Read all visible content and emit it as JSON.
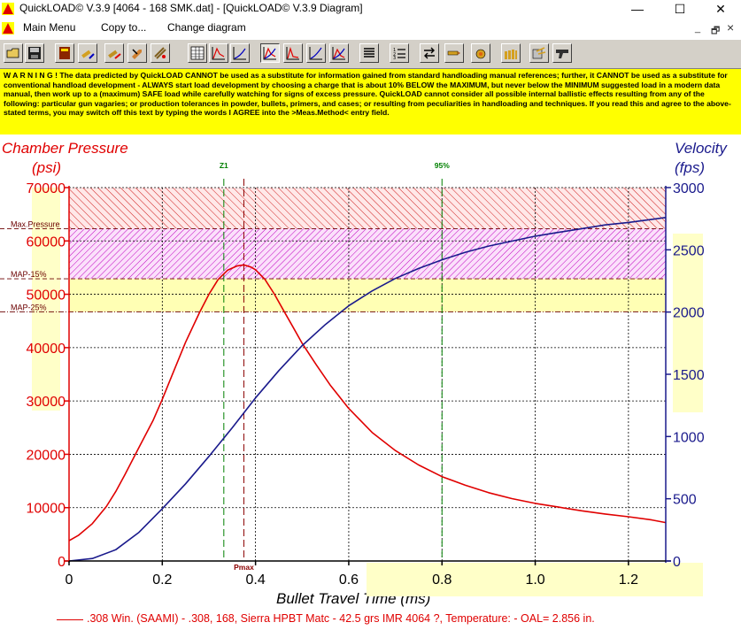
{
  "window": {
    "title": "QuickLOAD© V.3.9   [4064 - 168 SMK.dat] - [QuickLOAD© V.3.9 Diagram]",
    "minimize": "—",
    "maximize": "☐",
    "close": "✕"
  },
  "menu": {
    "items": [
      "Main Menu",
      "Copy to...",
      "Change diagram"
    ],
    "mdi_minimize": "_",
    "mdi_restore": "🗗",
    "mdi_close": "×"
  },
  "toolbar": {
    "icons": [
      "open-folder-icon",
      "save-disk-icon",
      "book-icon",
      "cartridge-edit-icon",
      "powder-edit-icon",
      "bullet-edit-icon",
      "gun-edit-icon",
      "table-icon",
      "pressure-chart-icon",
      "velocity-chart-icon",
      "pressure-time-chart-icon",
      "energy-chart-icon",
      "efficiency-chart-icon",
      "burn-chart-icon",
      "list-icon",
      "numbered-list-icon",
      "load-transfer-icon",
      "cartridge-set-icon",
      "primer-icon",
      "bullets-icon",
      "settings-icon",
      "pistol-icon"
    ],
    "pressed_index": 10
  },
  "warning": {
    "text": "W A R N I N G ! The data predicted by QuickLOAD CANNOT be used as a substitute for information gained from standard handloading manual references; further, it CANNOT be used as a substitute for conventional handload development - ALWAYS start load development by choosing a charge that is about 10% BELOW the MAXIMUM, but never below the MINIMUM suggested load in a modern data manual, then work up to a (maximum) SAFE load while carefully watching for signs of excess pressure. QuickLOAD cannot consider all possible internal ballistic effects resulting from any of the following: particular gun vagaries; or production tolerances in powder, bullets, primers, and cases; or resulting from peculiarities in handloading and techniques. If you read this and agree to the above-stated terms, you may switch off this text by typing the words I AGREE into the >Meas.Method< entry field."
  },
  "chart_data": {
    "type": "line",
    "title": "",
    "xlabel": "Bullet Travel Time (ms)",
    "y_left_label": "Chamber Pressure",
    "y_left_unit": "(psi)",
    "y_right_label": "Velocity",
    "y_right_unit": "(fps)",
    "xlim": [
      0,
      1.28
    ],
    "ylim_left": [
      0,
      70000
    ],
    "ylim_right": [
      0,
      3000
    ],
    "x_ticks": [
      "0",
      "0.2",
      "0.4",
      "0.6",
      "0.8",
      "1.0",
      "1.2"
    ],
    "x_tick_values": [
      0,
      0.2,
      0.4,
      0.6,
      0.8,
      1.0,
      1.2
    ],
    "y_left_ticks": [
      "0",
      "10000",
      "20000",
      "30000",
      "40000",
      "50000",
      "60000",
      "70000"
    ],
    "y_left_tick_values": [
      0,
      10000,
      20000,
      30000,
      40000,
      50000,
      60000,
      70000
    ],
    "y_right_ticks": [
      "0",
      "500",
      "1000",
      "1500",
      "2000",
      "2500",
      "3000"
    ],
    "y_right_tick_values": [
      0,
      500,
      1000,
      1500,
      2000,
      2500,
      3000
    ],
    "grid": true,
    "pressure_levels": [
      {
        "label": "Max.Pressure",
        "value": 62300
      },
      {
        "label": "MAP-15%",
        "value": 52900
      },
      {
        "label": "MAP-25%",
        "value": 46700
      }
    ],
    "markers": [
      {
        "label": "Z1",
        "x": 0.332,
        "position": "top",
        "color": "#008000"
      },
      {
        "label": "95%",
        "x": 0.8,
        "position": "top",
        "color": "#008000"
      },
      {
        "label": "Pmax",
        "x": 0.375,
        "position": "bottom",
        "color": "#8b0000"
      }
    ],
    "series": [
      {
        "name": "Chamber Pressure",
        "axis": "left",
        "color": "#e00000",
        "x": [
          0,
          0.02,
          0.05,
          0.08,
          0.1,
          0.12,
          0.15,
          0.18,
          0.2,
          0.22,
          0.25,
          0.28,
          0.3,
          0.32,
          0.34,
          0.36,
          0.375,
          0.39,
          0.4,
          0.42,
          0.44,
          0.46,
          0.48,
          0.5,
          0.53,
          0.56,
          0.6,
          0.65,
          0.7,
          0.75,
          0.8,
          0.85,
          0.9,
          0.95,
          1.0,
          1.05,
          1.1,
          1.15,
          1.2,
          1.25,
          1.28
        ],
        "y": [
          3800,
          4800,
          7000,
          10200,
          13000,
          16200,
          21300,
          26300,
          30300,
          34600,
          41000,
          46600,
          50000,
          52800,
          54500,
          55300,
          55500,
          55100,
          54600,
          52800,
          50100,
          47000,
          43900,
          40800,
          36800,
          33000,
          28600,
          24100,
          20700,
          18000,
          15800,
          14200,
          12800,
          11700,
          10800,
          10100,
          9400,
          8800,
          8300,
          7700,
          7200
        ]
      },
      {
        "name": "Velocity",
        "axis": "right",
        "color": "#1a1a8c",
        "x": [
          0,
          0.05,
          0.1,
          0.15,
          0.2,
          0.25,
          0.3,
          0.35,
          0.4,
          0.45,
          0.5,
          0.55,
          0.6,
          0.65,
          0.7,
          0.75,
          0.8,
          0.85,
          0.9,
          0.95,
          1.0,
          1.05,
          1.1,
          1.15,
          1.2,
          1.25,
          1.28
        ],
        "y": [
          0,
          20,
          90,
          230,
          420,
          620,
          840,
          1070,
          1310,
          1530,
          1730,
          1900,
          2050,
          2170,
          2270,
          2350,
          2420,
          2480,
          2530,
          2570,
          2610,
          2640,
          2670,
          2700,
          2720,
          2745,
          2760
        ]
      }
    ]
  },
  "legend": {
    "text": ".308 Win. (SAAMI) - .308, 168, Sierra HPBT Matc - 42.5 grs IMR 4064 ?, Temperature: - OAL= 2.856 in."
  }
}
